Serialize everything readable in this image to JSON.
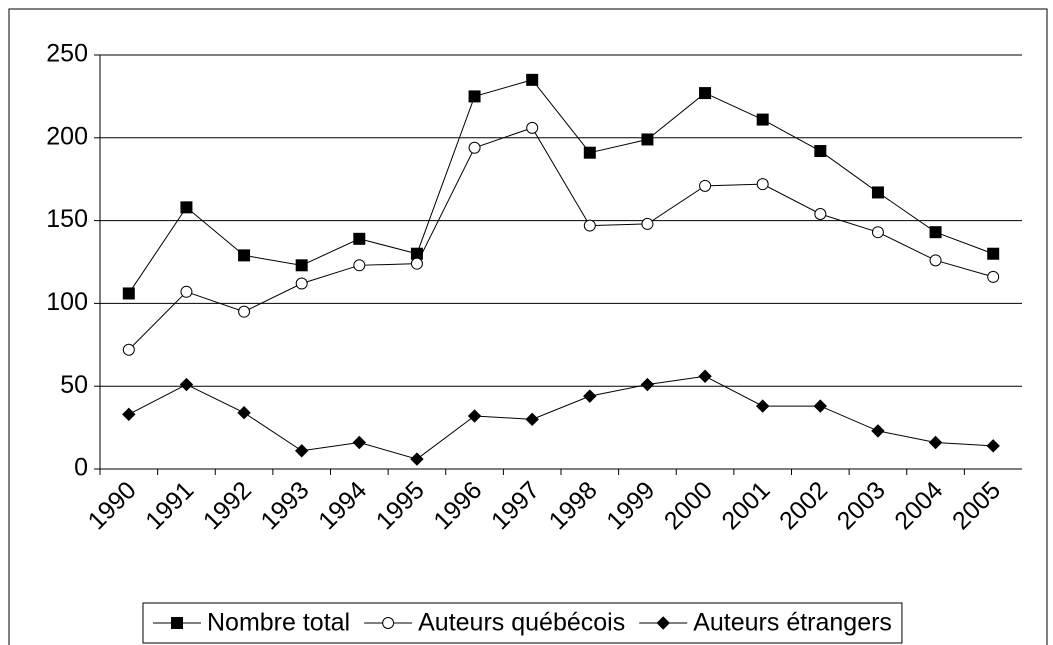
{
  "chart_data": {
    "type": "line",
    "categories": [
      "1990",
      "1991",
      "1992",
      "1993",
      "1994",
      "1995",
      "1996",
      "1997",
      "1998",
      "1999",
      "2000",
      "2001",
      "2002",
      "2003",
      "2004",
      "2005"
    ],
    "series": [
      {
        "name": "Nombre total",
        "color": "#000000",
        "marker": "square",
        "values": [
          106,
          158,
          129,
          123,
          139,
          130,
          225,
          235,
          191,
          199,
          227,
          211,
          192,
          167,
          143,
          130
        ]
      },
      {
        "name": "Auteurs québécois",
        "color": "#000000",
        "marker": "circle",
        "values": [
          72,
          107,
          95,
          112,
          123,
          124,
          194,
          206,
          147,
          148,
          171,
          172,
          154,
          143,
          126,
          116
        ]
      },
      {
        "name": "Auteurs étrangers",
        "color": "#000000",
        "marker": "diamond",
        "values": [
          33,
          51,
          34,
          11,
          16,
          6,
          32,
          30,
          44,
          51,
          56,
          38,
          38,
          23,
          16,
          14
        ]
      }
    ],
    "ylim": [
      0,
      250
    ],
    "yticks": [
      0,
      50,
      100,
      150,
      200,
      250
    ],
    "grid": true,
    "legend": "bottom"
  }
}
